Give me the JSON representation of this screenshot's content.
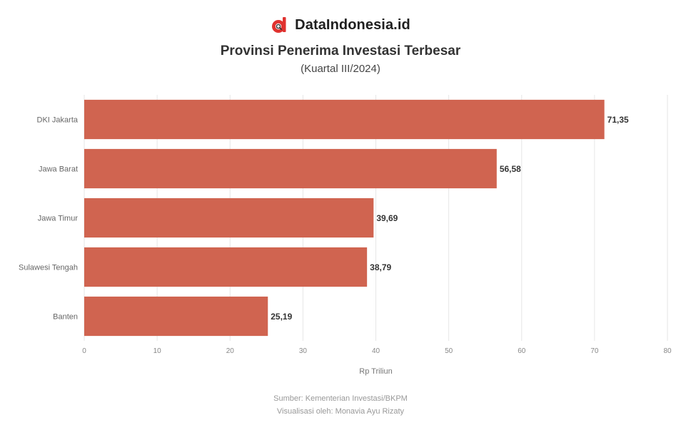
{
  "brand": {
    "name": "DataIndonesia.id",
    "logo_icon": "dataindonesia-logo-icon"
  },
  "chart_data": {
    "type": "bar",
    "orientation": "horizontal",
    "title": "Provinsi Penerima Investasi Terbesar",
    "subtitle": "(Kuartal III/2024)",
    "categories": [
      "DKI Jakarta",
      "Jawa Barat",
      "Jawa Timur",
      "Sulawesi Tengah",
      "Banten"
    ],
    "values": [
      71.35,
      56.58,
      39.69,
      38.79,
      25.19
    ],
    "value_labels": [
      "71,35",
      "56,58",
      "39,69",
      "38,79",
      "25,19"
    ],
    "xlabel": "Rp Triliun",
    "ylabel": "",
    "xlim": [
      0,
      80
    ],
    "xticks": [
      0,
      10,
      20,
      30,
      40,
      50,
      60,
      70,
      80
    ],
    "grid": true,
    "bar_color": "#d06450"
  },
  "footer": {
    "source": "Sumber: Kementerian Investasi/BKPM",
    "credit": "Visualisasi oleh: Monavia Ayu Rizaty"
  }
}
